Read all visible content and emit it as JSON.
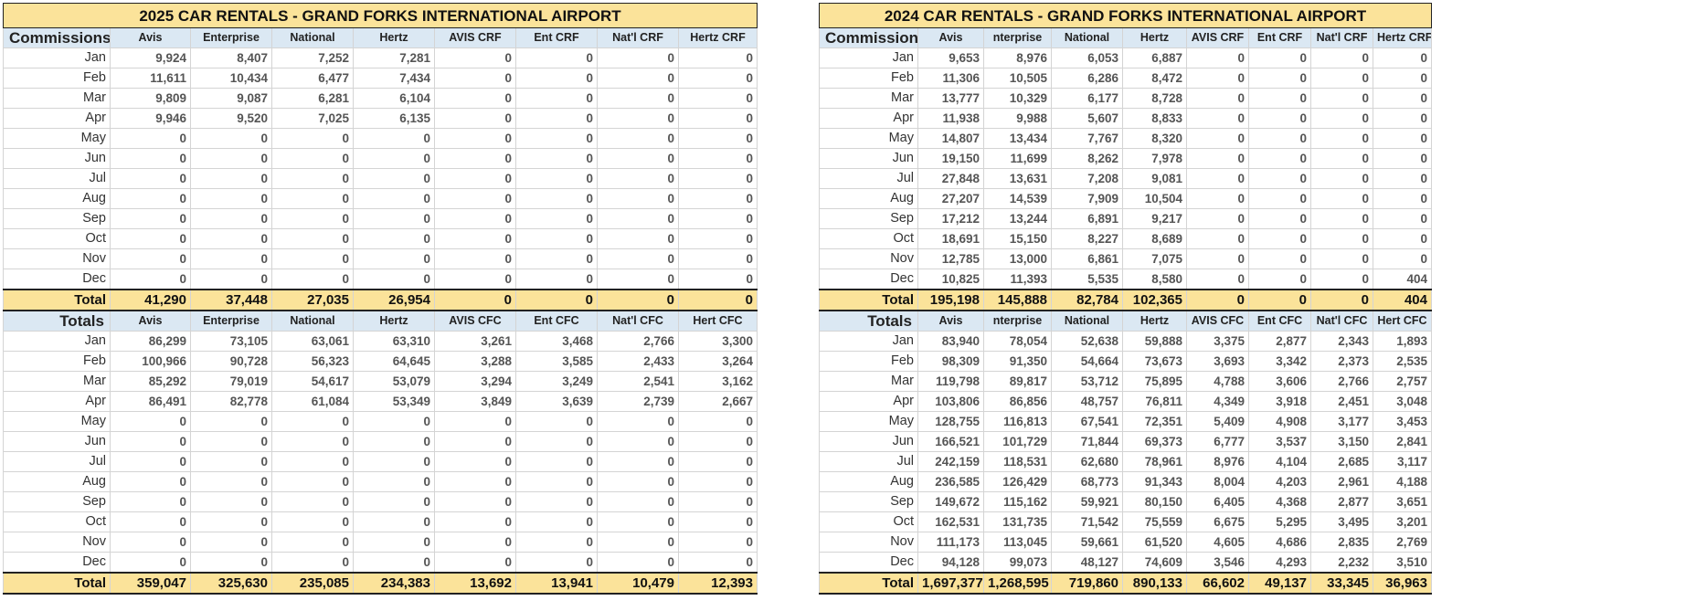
{
  "months": [
    "Jan",
    "Feb",
    "Mar",
    "Apr",
    "May",
    "Jun",
    "Jul",
    "Aug",
    "Sep",
    "Oct",
    "Nov",
    "Dec"
  ],
  "total_label": "Total",
  "sheets": [
    {
      "title": "2025 CAR RENTALS - GRAND FORKS INTERNATIONAL AIRPORT",
      "commissions": {
        "label": "Commissions",
        "headers": [
          "Avis",
          "Enterprise",
          "National",
          "Hertz",
          "AVIS CRF",
          "Ent CRF",
          "Nat'l CRF",
          "Hertz CRF"
        ],
        "rows": [
          [
            "9,924",
            "8,407",
            "7,252",
            "7,281",
            "0",
            "0",
            "0",
            "0"
          ],
          [
            "11,611",
            "10,434",
            "6,477",
            "7,434",
            "0",
            "0",
            "0",
            "0"
          ],
          [
            "9,809",
            "9,087",
            "6,281",
            "6,104",
            "0",
            "0",
            "0",
            "0"
          ],
          [
            "9,946",
            "9,520",
            "7,025",
            "6,135",
            "0",
            "0",
            "0",
            "0"
          ],
          [
            "0",
            "0",
            "0",
            "0",
            "0",
            "0",
            "0",
            "0"
          ],
          [
            "0",
            "0",
            "0",
            "0",
            "0",
            "0",
            "0",
            "0"
          ],
          [
            "0",
            "0",
            "0",
            "0",
            "0",
            "0",
            "0",
            "0"
          ],
          [
            "0",
            "0",
            "0",
            "0",
            "0",
            "0",
            "0",
            "0"
          ],
          [
            "0",
            "0",
            "0",
            "0",
            "0",
            "0",
            "0",
            "0"
          ],
          [
            "0",
            "0",
            "0",
            "0",
            "0",
            "0",
            "0",
            "0"
          ],
          [
            "0",
            "0",
            "0",
            "0",
            "0",
            "0",
            "0",
            "0"
          ],
          [
            "0",
            "0",
            "0",
            "0",
            "0",
            "0",
            "0",
            "0"
          ]
        ],
        "total": [
          "41,290",
          "37,448",
          "27,035",
          "26,954",
          "0",
          "0",
          "0",
          "0"
        ]
      },
      "totals": {
        "label": "Totals",
        "headers": [
          "Avis",
          "Enterprise",
          "National",
          "Hertz",
          "AVIS CFC",
          "Ent CFC",
          "Nat'l CFC",
          "Hert CFC"
        ],
        "rows": [
          [
            "86,299",
            "73,105",
            "63,061",
            "63,310",
            "3,261",
            "3,468",
            "2,766",
            "3,300"
          ],
          [
            "100,966",
            "90,728",
            "56,323",
            "64,645",
            "3,288",
            "3,585",
            "2,433",
            "3,264"
          ],
          [
            "85,292",
            "79,019",
            "54,617",
            "53,079",
            "3,294",
            "3,249",
            "2,541",
            "3,162"
          ],
          [
            "86,491",
            "82,778",
            "61,084",
            "53,349",
            "3,849",
            "3,639",
            "2,739",
            "2,667"
          ],
          [
            "0",
            "0",
            "0",
            "0",
            "0",
            "0",
            "0",
            "0"
          ],
          [
            "0",
            "0",
            "0",
            "0",
            "0",
            "0",
            "0",
            "0"
          ],
          [
            "0",
            "0",
            "0",
            "0",
            "0",
            "0",
            "0",
            "0"
          ],
          [
            "0",
            "0",
            "0",
            "0",
            "0",
            "0",
            "0",
            "0"
          ],
          [
            "0",
            "0",
            "0",
            "0",
            "0",
            "0",
            "0",
            "0"
          ],
          [
            "0",
            "0",
            "0",
            "0",
            "0",
            "0",
            "0",
            "0"
          ],
          [
            "0",
            "0",
            "0",
            "0",
            "0",
            "0",
            "0",
            "0"
          ],
          [
            "0",
            "0",
            "0",
            "0",
            "0",
            "0",
            "0",
            "0"
          ]
        ],
        "total": [
          "359,047",
          "325,630",
          "235,085",
          "234,383",
          "13,692",
          "13,941",
          "10,479",
          "12,393"
        ]
      }
    },
    {
      "title": "2024 CAR RENTALS - GRAND FORKS INTERNATIONAL AIRPORT",
      "commissions": {
        "label": "Commissions",
        "headers": [
          "Avis",
          "nterprise",
          "National",
          "Hertz",
          "AVIS CRF",
          "Ent CRF",
          "Nat'l CRF",
          "Hertz CRF"
        ],
        "rows": [
          [
            "9,653",
            "8,976",
            "6,053",
            "6,887",
            "0",
            "0",
            "0",
            "0"
          ],
          [
            "11,306",
            "10,505",
            "6,286",
            "8,472",
            "0",
            "0",
            "0",
            "0"
          ],
          [
            "13,777",
            "10,329",
            "6,177",
            "8,728",
            "0",
            "0",
            "0",
            "0"
          ],
          [
            "11,938",
            "9,988",
            "5,607",
            "8,833",
            "0",
            "0",
            "0",
            "0"
          ],
          [
            "14,807",
            "13,434",
            "7,767",
            "8,320",
            "0",
            "0",
            "0",
            "0"
          ],
          [
            "19,150",
            "11,699",
            "8,262",
            "7,978",
            "0",
            "0",
            "0",
            "0"
          ],
          [
            "27,848",
            "13,631",
            "7,208",
            "9,081",
            "0",
            "0",
            "0",
            "0"
          ],
          [
            "27,207",
            "14,539",
            "7,909",
            "10,504",
            "0",
            "0",
            "0",
            "0"
          ],
          [
            "17,212",
            "13,244",
            "6,891",
            "9,217",
            "0",
            "0",
            "0",
            "0"
          ],
          [
            "18,691",
            "15,150",
            "8,227",
            "8,689",
            "0",
            "0",
            "0",
            "0"
          ],
          [
            "12,785",
            "13,000",
            "6,861",
            "7,075",
            "0",
            "0",
            "0",
            "0"
          ],
          [
            "10,825",
            "11,393",
            "5,535",
            "8,580",
            "0",
            "0",
            "0",
            "404"
          ]
        ],
        "total": [
          "195,198",
          "145,888",
          "82,784",
          "102,365",
          "0",
          "0",
          "0",
          "404"
        ]
      },
      "totals": {
        "label": "Totals",
        "headers": [
          "Avis",
          "nterprise",
          "National",
          "Hertz",
          "AVIS CFC",
          "Ent CFC",
          "Nat'l CFC",
          "Hert CFC"
        ],
        "rows": [
          [
            "83,940",
            "78,054",
            "52,638",
            "59,888",
            "3,375",
            "2,877",
            "2,343",
            "1,893"
          ],
          [
            "98,309",
            "91,350",
            "54,664",
            "73,673",
            "3,693",
            "3,342",
            "2,373",
            "2,535"
          ],
          [
            "119,798",
            "89,817",
            "53,712",
            "75,895",
            "4,788",
            "3,606",
            "2,766",
            "2,757"
          ],
          [
            "103,806",
            "86,856",
            "48,757",
            "76,811",
            "4,349",
            "3,918",
            "2,451",
            "3,048"
          ],
          [
            "128,755",
            "116,813",
            "67,541",
            "72,351",
            "5,409",
            "4,908",
            "3,177",
            "3,453"
          ],
          [
            "166,521",
            "101,729",
            "71,844",
            "69,373",
            "6,777",
            "3,537",
            "3,150",
            "2,841"
          ],
          [
            "242,159",
            "118,531",
            "62,680",
            "78,961",
            "8,976",
            "4,104",
            "2,685",
            "3,117"
          ],
          [
            "236,585",
            "126,429",
            "68,773",
            "91,343",
            "8,004",
            "4,203",
            "2,961",
            "4,188"
          ],
          [
            "149,672",
            "115,162",
            "59,921",
            "80,150",
            "6,405",
            "4,368",
            "2,877",
            "3,651"
          ],
          [
            "162,531",
            "131,735",
            "71,542",
            "75,559",
            "6,675",
            "5,295",
            "3,495",
            "3,201"
          ],
          [
            "111,173",
            "113,045",
            "59,661",
            "61,520",
            "4,605",
            "4,686",
            "2,835",
            "2,769"
          ],
          [
            "94,128",
            "99,073",
            "48,127",
            "74,609",
            "3,546",
            "4,293",
            "2,232",
            "3,510"
          ]
        ],
        "total": [
          "1,697,377",
          "1,268,595",
          "719,860",
          "890,133",
          "66,602",
          "49,137",
          "33,345",
          "36,963"
        ]
      }
    }
  ]
}
